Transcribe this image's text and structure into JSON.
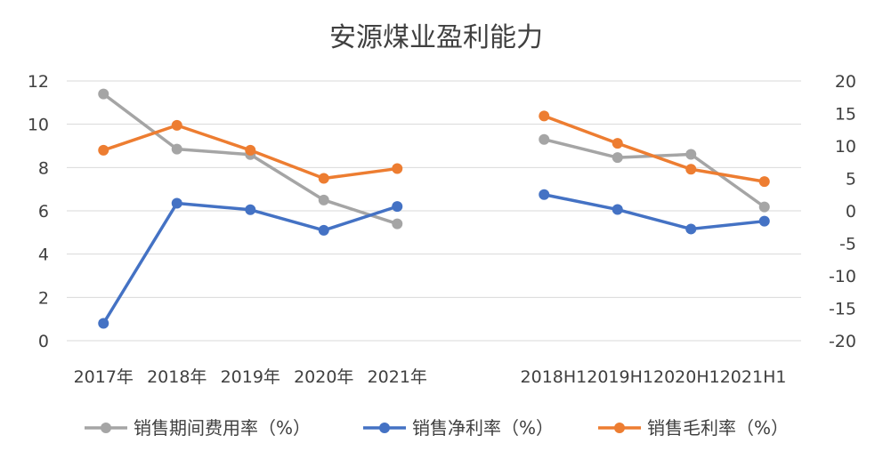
{
  "chart_data": {
    "type": "line",
    "title": "安源煤业盈利能力",
    "categories": [
      "2017年",
      "2018年",
      "2019年",
      "2020年",
      "2021年",
      "",
      "2018H1",
      "2019H1",
      "2020H1",
      "2021H1"
    ],
    "category_axis_label": "2018H12019H12020H12021H1",
    "left_axis": {
      "range": [
        0,
        12
      ],
      "ticks": [
        "0",
        "2",
        "4",
        "6",
        "8",
        "10",
        "12"
      ]
    },
    "right_axis": {
      "range": [
        -20,
        20
      ],
      "ticks": [
        "-20",
        "-15",
        "-10",
        "-5",
        "0",
        "5",
        "10",
        "15",
        "20"
      ]
    },
    "grid": true,
    "legend_position": "bottom",
    "series": [
      {
        "name": "销售期间费用率（%）",
        "color": "#a5a5a5",
        "annual": {
          "axis": "left",
          "values": [
            11.4,
            8.85,
            8.6,
            6.5,
            5.4
          ]
        },
        "half_year": {
          "axis": "right",
          "values": [
            11,
            8.2,
            8.7,
            0.6
          ]
        }
      },
      {
        "name": "销售净利率（%）",
        "color": "#4472c4",
        "annual": {
          "axis": "left",
          "values": [
            0.8,
            6.35,
            6.05,
            5.1,
            6.2
          ]
        },
        "half_year": {
          "axis": "right",
          "values": [
            2.5,
            0.2,
            -2.8,
            -1.6
          ]
        }
      },
      {
        "name": "销售毛利率（%）",
        "color": "#ed7d31",
        "annual": {
          "axis": "left",
          "values": [
            8.8,
            9.95,
            8.8,
            7.5,
            7.95
          ]
        },
        "half_year": {
          "axis": "right",
          "values": [
            14.6,
            10.4,
            6.4,
            4.5
          ]
        }
      }
    ]
  }
}
